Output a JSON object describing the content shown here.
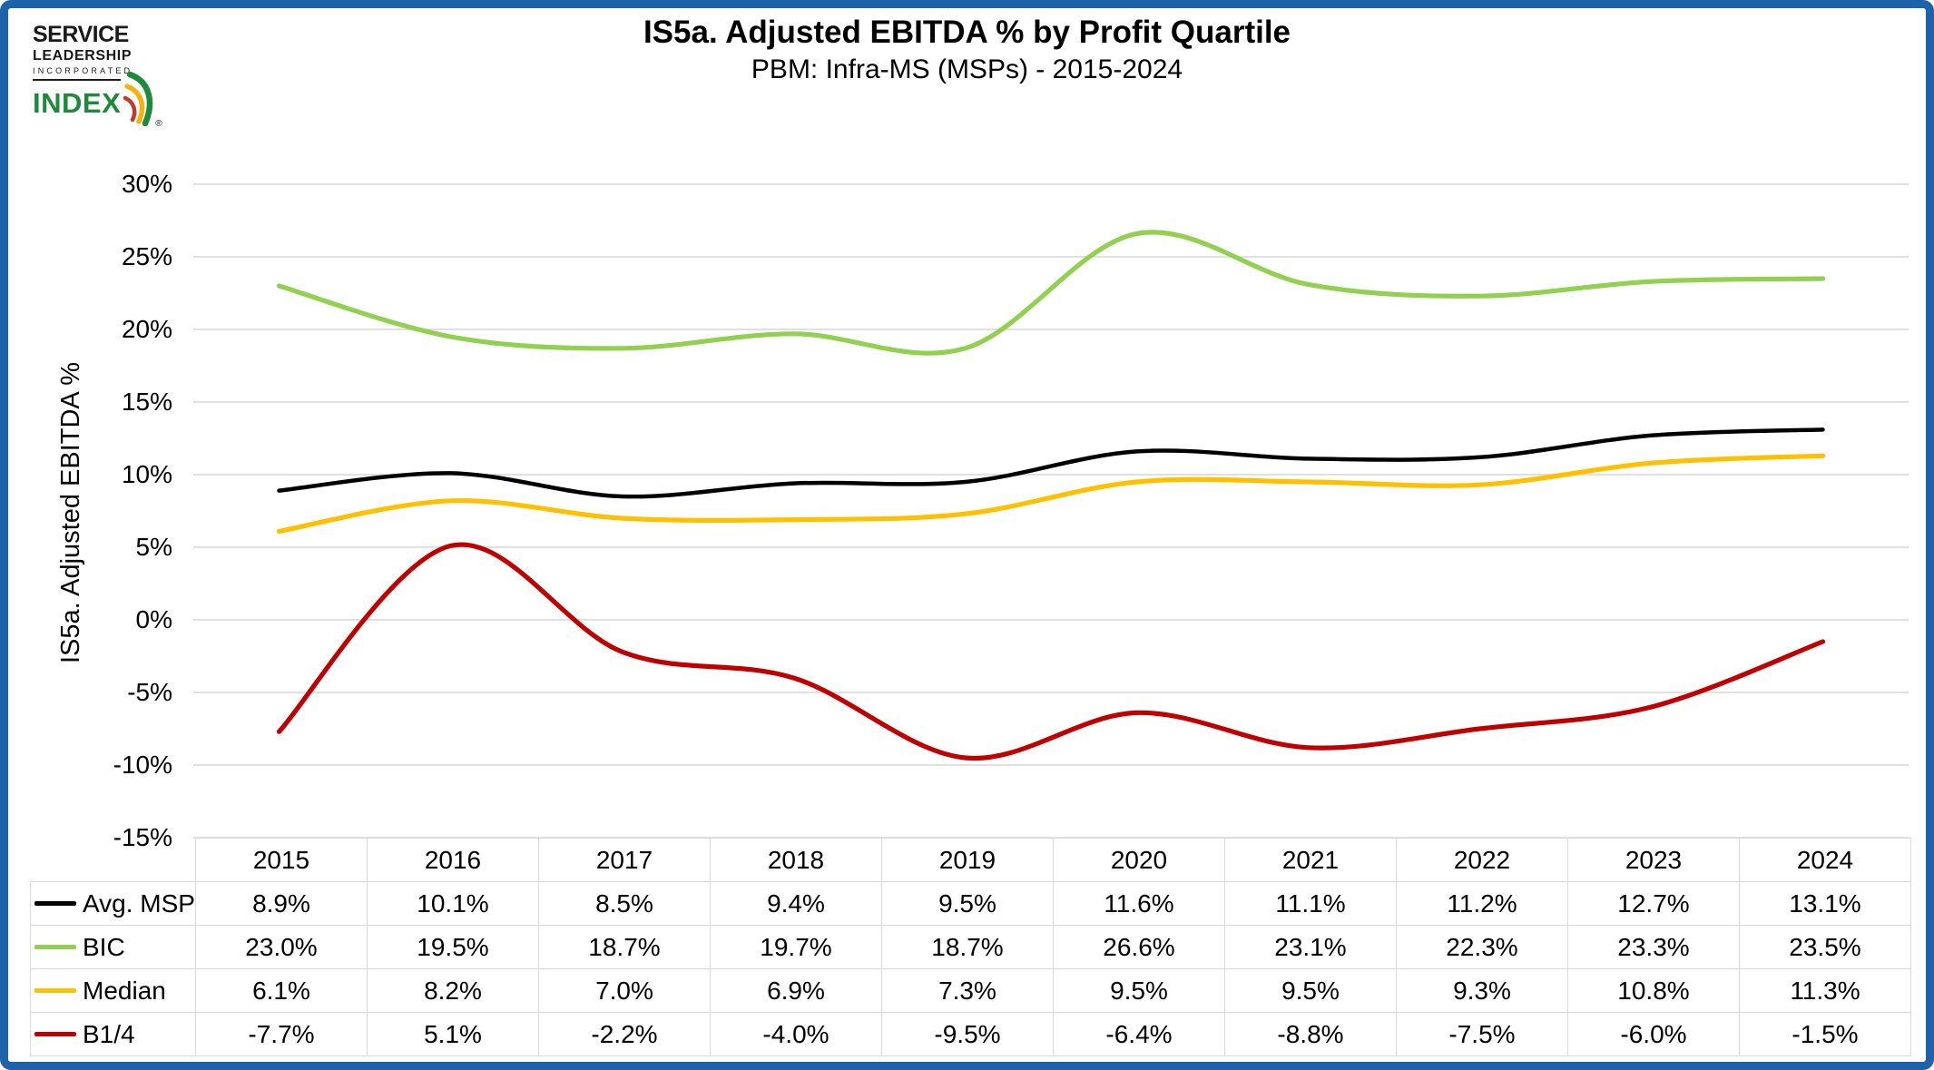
{
  "logo": {
    "line1": "SERVICE",
    "line2": "LEADERSHIP",
    "line3": "INCORPORATED",
    "wordmark": "INDEX",
    "registered": "®"
  },
  "header": {
    "title": "IS5a. Adjusted EBITDA % by Profit Quartile",
    "subtitle": "PBM: Infra-MS (MSPs) - 2015-2024"
  },
  "chart_data": {
    "type": "line",
    "title": "IS5a. Adjusted EBITDA % by Profit Quartile",
    "subtitle": "PBM: Infra-MS (MSPs) - 2015-2024",
    "xlabel": "",
    "ylabel": "IS5a. Adjusted EBITDA %",
    "ylim": [
      -15,
      30
    ],
    "ytick_step": 5,
    "ytick_format": "percent",
    "grid": true,
    "smooth": true,
    "markers": false,
    "legend_position": "data-table-left",
    "categories": [
      "2015",
      "2016",
      "2017",
      "2018",
      "2019",
      "2020",
      "2021",
      "2022",
      "2023",
      "2024"
    ],
    "series": [
      {
        "name": "Avg. MSP",
        "color": "#000000",
        "values": [
          8.9,
          10.1,
          8.5,
          9.4,
          9.5,
          11.6,
          11.1,
          11.2,
          12.7,
          13.1
        ]
      },
      {
        "name": "BIC",
        "color": "#92D050",
        "values": [
          23.0,
          19.5,
          18.7,
          19.7,
          18.7,
          26.6,
          23.1,
          22.3,
          23.3,
          23.5
        ]
      },
      {
        "name": "Median",
        "color": "#FFC000",
        "values": [
          6.1,
          8.2,
          7.0,
          6.9,
          7.3,
          9.5,
          9.5,
          9.3,
          10.8,
          11.3
        ]
      },
      {
        "name": "B1/4",
        "color": "#C00000",
        "values": [
          -7.7,
          5.1,
          -2.2,
          -4.0,
          -9.5,
          -6.4,
          -8.8,
          -7.5,
          -6.0,
          -1.5
        ]
      }
    ]
  },
  "colors": {
    "frame_border": "#1E62AC",
    "gridline": "#D6D6D6",
    "table_border": "#D9D9D9",
    "logo_green": "#1E8A3C",
    "logo_yellow": "#F0B310",
    "logo_red": "#C23A2B",
    "text": "#000000"
  }
}
